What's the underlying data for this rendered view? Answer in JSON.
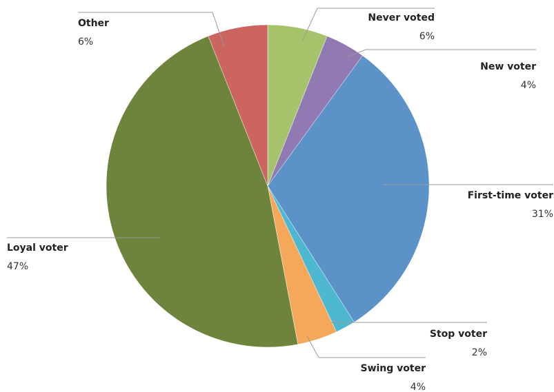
{
  "chart_data": {
    "type": "pie",
    "categories": [
      "Never voted",
      "New voter",
      "First-time voter",
      "Stop voter",
      "Swing voter",
      "Loyal voter",
      "Other"
    ],
    "values": [
      6,
      4,
      31,
      2,
      4,
      47,
      6
    ],
    "value_labels": [
      "6%",
      "4%",
      "31%",
      "2%",
      "4%",
      "47%",
      "6%"
    ],
    "colors": [
      "#a5c36a",
      "#9179b2",
      "#5b93c9",
      "#4db8d0",
      "#f5a85a",
      "#6e843c",
      "#cc6560"
    ]
  }
}
